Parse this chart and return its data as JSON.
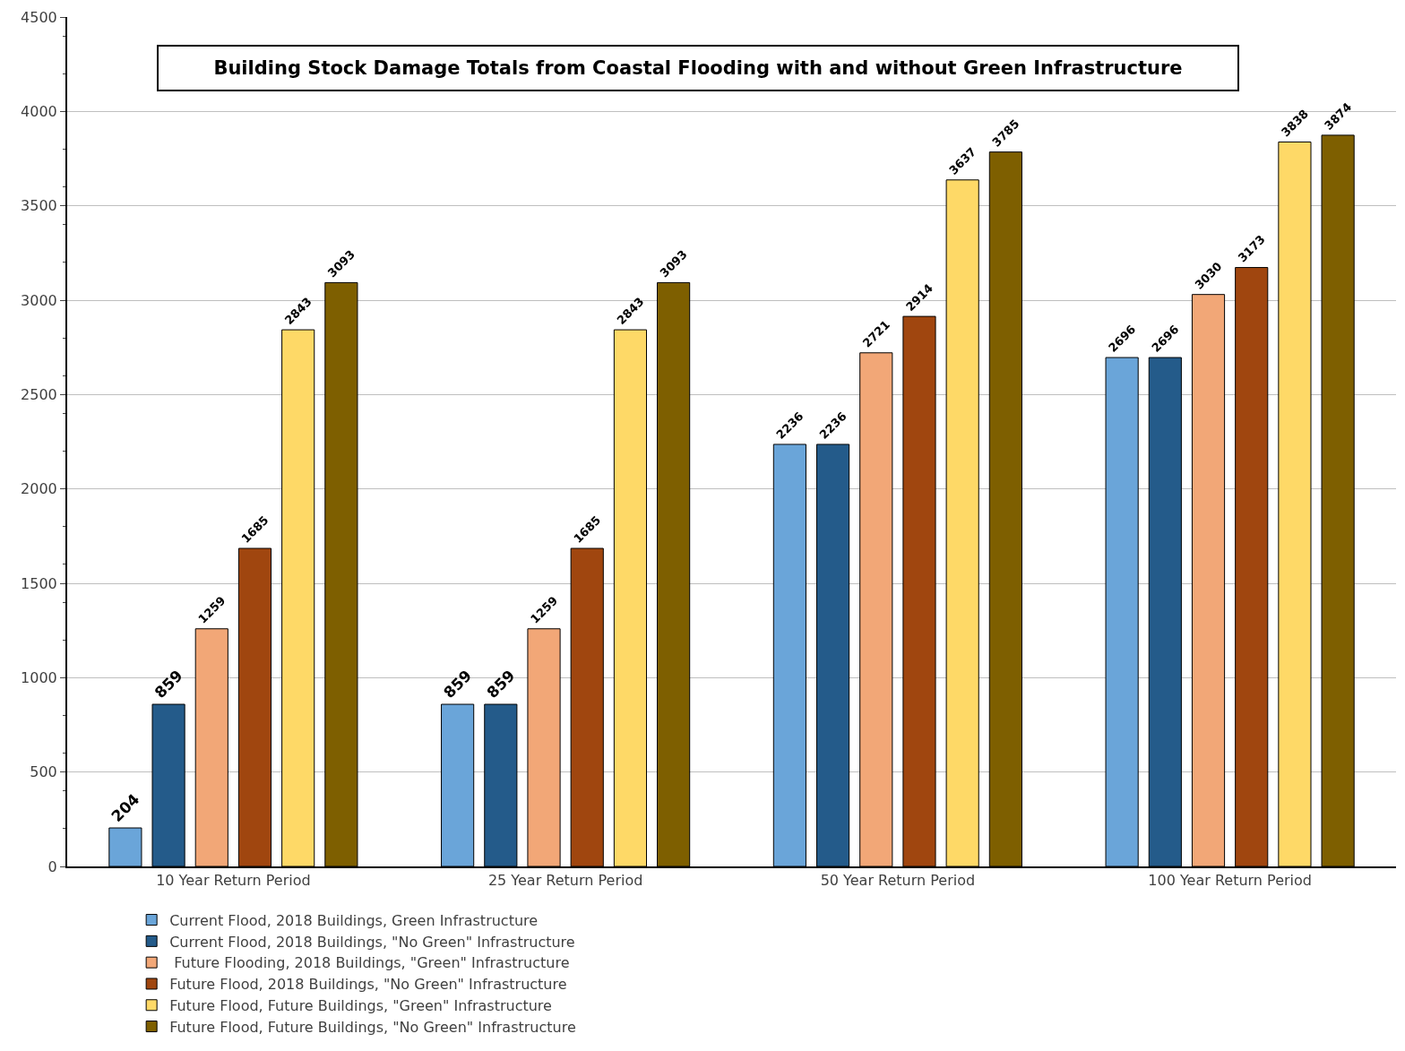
{
  "chart_data": {
    "type": "bar",
    "title": "Building Stock Damage Totals from Coastal Flooding with and without Green Infrastructure",
    "categories": [
      "10 Year Return Period",
      "25 Year Return Period",
      "50 Year Return Period",
      "100 Year Return Period"
    ],
    "series": [
      {
        "name": "Current Flood, 2018 Buildings, Green Infrastructure",
        "color": "#6aa5d9",
        "values": [
          204,
          859,
          2236,
          2696
        ]
      },
      {
        "name": "Current Flood, 2018 Buildings, \"No Green\" Infrastructure",
        "color": "#245b8a",
        "values": [
          859,
          859,
          2236,
          2696
        ]
      },
      {
        "name": " Future Flooding, 2018 Buildings, \"Green\" Infrastructure",
        "color": "#f2a777",
        "values": [
          1259,
          1259,
          2721,
          3030
        ]
      },
      {
        "name": "Future Flood, 2018 Buildings, \"No Green\" Infrastructure",
        "color": "#a0460f",
        "values": [
          1685,
          1685,
          2914,
          3173
        ]
      },
      {
        "name": "Future Flood, Future Buildings, \"Green\" Infrastructure",
        "color": "#fed967",
        "values": [
          2843,
          2843,
          3637,
          3838
        ]
      },
      {
        "name": "Future Flood, Future Buildings, \"No Green\" Infrastructure",
        "color": "#7e5f00",
        "values": [
          3093,
          3093,
          3785,
          3874
        ]
      }
    ],
    "ylim": [
      0,
      4500
    ],
    "yticks": [
      0,
      500,
      1000,
      1500,
      2000,
      2500,
      3000,
      3500,
      4000,
      4500
    ],
    "grid": "y",
    "legend": "bottom",
    "data_labels": true
  }
}
